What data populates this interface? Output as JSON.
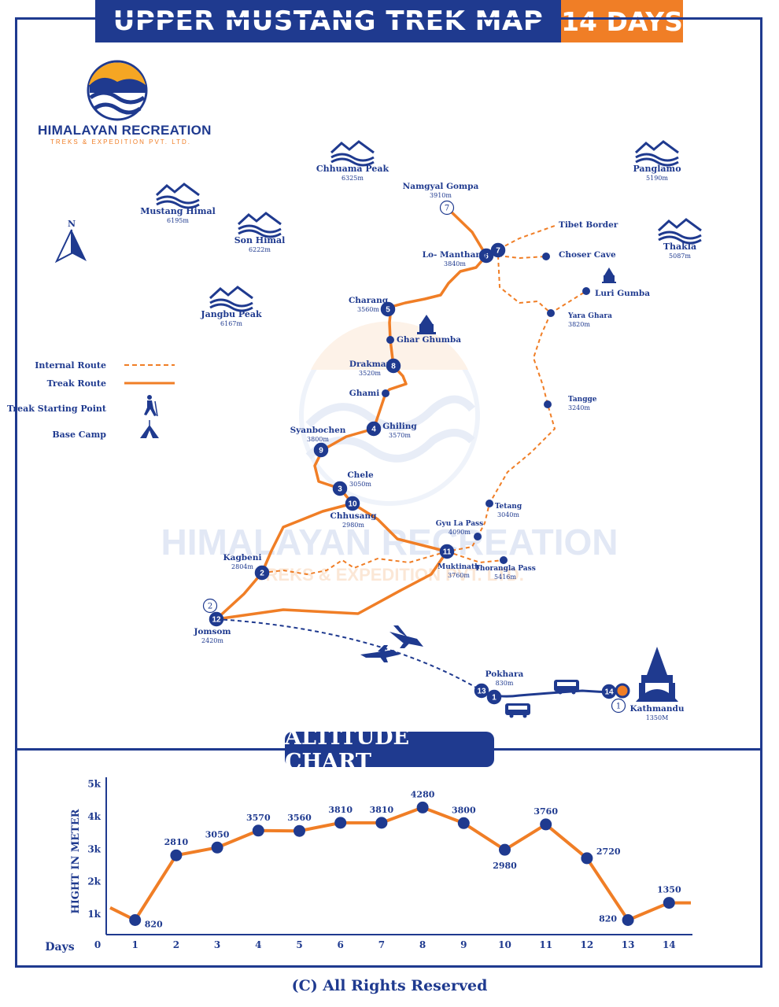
{
  "header": {
    "title": "UPPER MUSTANG TREK MAP",
    "days": "14 DAYS"
  },
  "brand": {
    "name": "HIMALAYAN RECREATION",
    "sub": "TREKS & EXPEDITION PVT. LTD."
  },
  "watermark": {
    "name": "HIMALAYAN RECREATION",
    "sub": "TREKS & EXPEDITION PVT. LTD."
  },
  "north": "N",
  "legend": {
    "internal": "Internal Route",
    "trek": "Treak Route",
    "start": "Treak Starting Point",
    "base": "Base Camp"
  },
  "peaks": [
    {
      "name": "Chhuama Peak",
      "alt": "6325m"
    },
    {
      "name": "Panglamo",
      "alt": "5190m"
    },
    {
      "name": "Mustang Himal",
      "alt": "6195m"
    },
    {
      "name": "Son Himal",
      "alt": "6222m"
    },
    {
      "name": "Thakla",
      "alt": "5087m"
    },
    {
      "name": "Jangbu Peak",
      "alt": "6167m"
    }
  ],
  "places": [
    {
      "name": "Namgyal Gompa",
      "alt": "3910m"
    },
    {
      "name": "Tibet Border",
      "alt": ""
    },
    {
      "name": "Lo- Manthang",
      "alt": "3840m"
    },
    {
      "name": "Choser Cave",
      "alt": ""
    },
    {
      "name": "Luri Gumba",
      "alt": ""
    },
    {
      "name": "Charang",
      "alt": "3560m"
    },
    {
      "name": "Yara Ghara",
      "alt": "3820m"
    },
    {
      "name": "Ghar Ghumba",
      "alt": ""
    },
    {
      "name": "Drakmar",
      "alt": "3520m"
    },
    {
      "name": "Ghami",
      "alt": ""
    },
    {
      "name": "Tangge",
      "alt": "3240m"
    },
    {
      "name": "Syanbochen",
      "alt": "3800m"
    },
    {
      "name": "Ghiling",
      "alt": "3570m"
    },
    {
      "name": "Chele",
      "alt": "3050m"
    },
    {
      "name": "Chhusang",
      "alt": "2980m"
    },
    {
      "name": "Tetang",
      "alt": "3040m"
    },
    {
      "name": "Gyu La Pass",
      "alt": "4090m"
    },
    {
      "name": "Kagbeni",
      "alt": "2804m"
    },
    {
      "name": "Muktinath",
      "alt": "3760m"
    },
    {
      "name": "Thorangla Pass",
      "alt": "5416m"
    },
    {
      "name": "Jomsom",
      "alt": "2420m"
    },
    {
      "name": "Pokhara",
      "alt": "830m"
    },
    {
      "name": "Kathmandu",
      "alt": "1350M"
    }
  ],
  "day_markers": [
    "7",
    "6",
    "7",
    "5",
    "8",
    "4",
    "9",
    "3",
    "10",
    "11",
    "2",
    "2",
    "12",
    "13",
    "1",
    "14",
    "1"
  ],
  "chart_title": "ALTITUDE CHART",
  "chart_data": {
    "type": "line",
    "title": "ALTITUDE CHART",
    "xlabel": "Days",
    "ylabel": "HIGHT IN METER",
    "x_ticks": [
      "0",
      "1",
      "2",
      "3",
      "4",
      "5",
      "6",
      "7",
      "8",
      "9",
      "10",
      "11",
      "12",
      "13",
      "14"
    ],
    "y_ticks": [
      "1k",
      "2k",
      "3k",
      "4k",
      "5k"
    ],
    "ylim": [
      0,
      5000
    ],
    "series": [
      {
        "x": [
          1,
          2,
          3,
          4,
          5,
          6,
          7,
          8,
          9,
          10,
          11,
          12,
          13,
          14
        ],
        "values": [
          820,
          2810,
          3050,
          3570,
          3560,
          3810,
          3810,
          4280,
          3800,
          2980,
          3760,
          2720,
          820,
          1350
        ]
      }
    ],
    "data_labels": [
      "820",
      "2810",
      "3050",
      "3570",
      "3560",
      "3810",
      "3810",
      "4280",
      "3800",
      "2980",
      "3760",
      "2720",
      "820",
      "1350"
    ],
    "grid": false,
    "colors": {
      "line": "#f07e26",
      "marker": "#1f3a8f"
    }
  },
  "copyright": "(C) All Rights Reserved",
  "colors": {
    "navy": "#1f3a8f",
    "orange": "#f07e26"
  }
}
